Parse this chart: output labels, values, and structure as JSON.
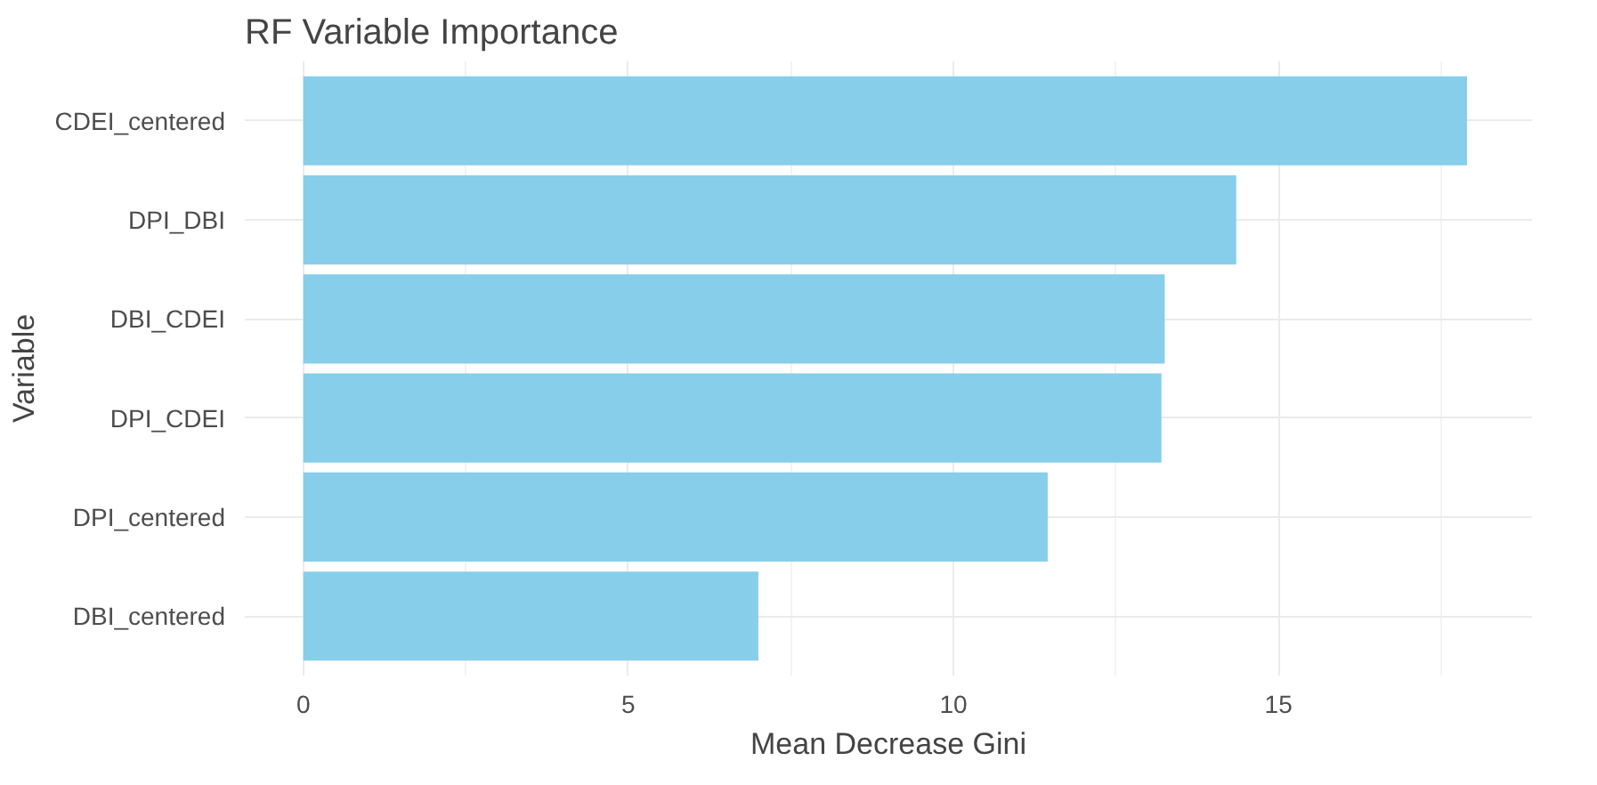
{
  "chart_data": {
    "type": "bar",
    "orientation": "horizontal",
    "title": "RF Variable Importance",
    "xlabel": "Mean Decrease Gini",
    "ylabel": "Variable",
    "categories": [
      "CDEI_centered",
      "DPI_DBI",
      "DBI_CDEI",
      "DPI_CDEI",
      "DPI_centered",
      "DBI_centered"
    ],
    "values": [
      17.9,
      14.35,
      13.25,
      13.2,
      11.45,
      7.0
    ],
    "color": "#87ceeb",
    "xlim": [
      -0.9,
      18.9
    ],
    "xticks": [
      0,
      5,
      10,
      15
    ],
    "grid": true
  }
}
